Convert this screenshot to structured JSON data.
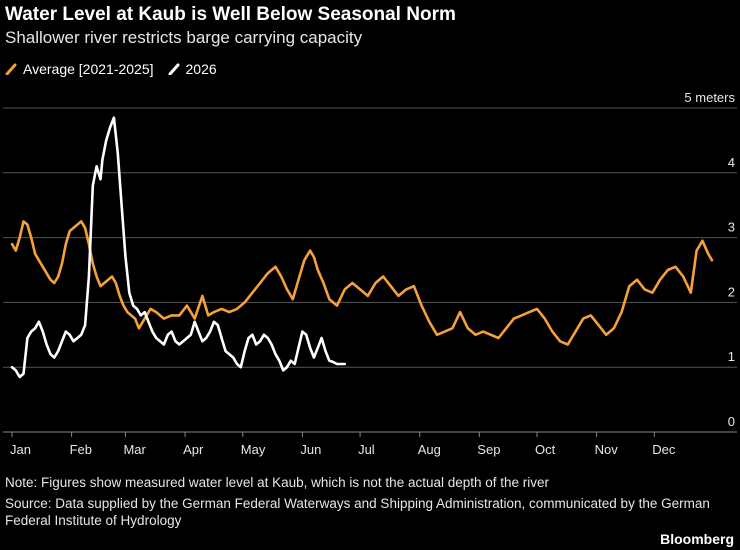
{
  "header": {
    "title": "Water Level at Kaub is Well Below Seasonal Norm",
    "subtitle": "Shallower river restricts barge carrying capacity"
  },
  "footer": {
    "note": "Note: Figures show measured water level at Kaub, which is not the actual depth of the river",
    "source": "Source: Data supplied by the German Federal Waterways and Shipping Administration, communicated by the German Federal Institute of Hydrology",
    "brand": "Bloomberg"
  },
  "colors": {
    "average": "#f5a03a",
    "current": "#ffffff",
    "grid": "#555555",
    "background": "#000000"
  },
  "chart_data": {
    "type": "line",
    "title": "Water Level at Kaub is Well Below Seasonal Norm",
    "subtitle": "Shallower river restricts barge carrying capacity",
    "ylabel": "",
    "y_unit_label": "5 meters",
    "ylim": [
      0,
      5
    ],
    "y_ticks": [
      0,
      1,
      2,
      3,
      4,
      5
    ],
    "y_tick_labels": [
      "0",
      "1",
      "2",
      "3",
      "4",
      "5 meters"
    ],
    "xlim": [
      1,
      365
    ],
    "x_tick_labels": [
      "Jan",
      "Feb",
      "Mar",
      "Apr",
      "May",
      "Jun",
      "Jul",
      "Aug",
      "Sep",
      "Oct",
      "Nov",
      "Dec"
    ],
    "x_tick_days": [
      1,
      32,
      60,
      91,
      121,
      152,
      182,
      213,
      244,
      274,
      305,
      335
    ],
    "grid": true,
    "legend_position": "top-left",
    "series": [
      {
        "name": "Average [2021-2025]",
        "color": "#f5a03a",
        "x": [
          1,
          3,
          5,
          7,
          9,
          11,
          13,
          15,
          17,
          19,
          21,
          23,
          25,
          27,
          29,
          31,
          33,
          35,
          37,
          39,
          41,
          43,
          45,
          47,
          49,
          51,
          53,
          55,
          57,
          59,
          61,
          63,
          65,
          67,
          69,
          71,
          73,
          76,
          80,
          84,
          88,
          92,
          96,
          100,
          103,
          106,
          110,
          114,
          118,
          122,
          126,
          130,
          134,
          138,
          141,
          144,
          147,
          150,
          153,
          156,
          158,
          160,
          163,
          166,
          170,
          174,
          178,
          182,
          186,
          190,
          194,
          198,
          202,
          206,
          210,
          214,
          218,
          222,
          226,
          230,
          234,
          238,
          242,
          246,
          250,
          254,
          258,
          262,
          266,
          270,
          274,
          278,
          282,
          286,
          290,
          294,
          298,
          302,
          306,
          310,
          314,
          318,
          322,
          326,
          330,
          334,
          338,
          342,
          346,
          350,
          354,
          357,
          360,
          363,
          365
        ],
        "values": [
          2.9,
          2.8,
          3.0,
          3.25,
          3.2,
          3.0,
          2.75,
          2.65,
          2.55,
          2.45,
          2.35,
          2.3,
          2.4,
          2.6,
          2.9,
          3.1,
          3.15,
          3.2,
          3.25,
          3.15,
          2.9,
          2.6,
          2.4,
          2.25,
          2.3,
          2.35,
          2.4,
          2.3,
          2.1,
          1.95,
          1.85,
          1.8,
          1.75,
          1.6,
          1.7,
          1.8,
          1.9,
          1.85,
          1.75,
          1.8,
          1.8,
          1.95,
          1.75,
          2.1,
          1.8,
          1.85,
          1.9,
          1.85,
          1.9,
          2.0,
          2.15,
          2.3,
          2.45,
          2.55,
          2.4,
          2.2,
          2.05,
          2.35,
          2.65,
          2.8,
          2.7,
          2.5,
          2.3,
          2.05,
          1.95,
          2.2,
          2.3,
          2.2,
          2.1,
          2.3,
          2.4,
          2.25,
          2.1,
          2.2,
          2.25,
          1.95,
          1.7,
          1.5,
          1.55,
          1.6,
          1.85,
          1.6,
          1.5,
          1.55,
          1.5,
          1.45,
          1.6,
          1.75,
          1.8,
          1.85,
          1.9,
          1.75,
          1.55,
          1.4,
          1.35,
          1.55,
          1.75,
          1.8,
          1.65,
          1.5,
          1.6,
          1.85,
          2.25,
          2.35,
          2.2,
          2.15,
          2.35,
          2.5,
          2.55,
          2.4,
          2.15,
          2.8,
          2.95,
          2.75,
          2.65
        ]
      },
      {
        "name": "2026",
        "color": "#ffffff",
        "x": [
          1,
          3,
          5,
          7,
          9,
          11,
          13,
          15,
          17,
          19,
          21,
          23,
          25,
          27,
          29,
          31,
          33,
          35,
          37,
          39,
          41,
          43,
          45,
          47,
          48,
          50,
          52,
          54,
          56,
          58,
          60,
          62,
          64,
          66,
          68,
          70,
          72,
          74,
          76,
          78,
          80,
          82,
          84,
          86,
          88,
          90,
          92,
          94,
          96,
          98,
          100,
          102,
          104,
          106,
          108,
          110,
          112,
          114,
          116,
          118,
          120,
          122,
          124,
          126,
          128,
          130,
          132,
          134,
          136,
          138,
          140,
          142,
          144,
          146,
          148,
          150,
          152,
          154,
          156,
          158,
          160,
          162,
          164,
          166,
          168,
          170,
          172,
          174
        ],
        "values": [
          1.0,
          0.95,
          0.85,
          0.9,
          1.45,
          1.55,
          1.6,
          1.7,
          1.55,
          1.35,
          1.2,
          1.15,
          1.25,
          1.4,
          1.55,
          1.5,
          1.4,
          1.45,
          1.5,
          1.65,
          2.4,
          3.8,
          4.1,
          3.9,
          4.2,
          4.5,
          4.7,
          4.85,
          4.3,
          3.5,
          2.7,
          2.15,
          1.95,
          1.9,
          1.8,
          1.85,
          1.7,
          1.55,
          1.45,
          1.4,
          1.35,
          1.5,
          1.55,
          1.4,
          1.35,
          1.4,
          1.45,
          1.5,
          1.7,
          1.55,
          1.4,
          1.45,
          1.55,
          1.7,
          1.65,
          1.45,
          1.25,
          1.2,
          1.15,
          1.05,
          1.0,
          1.25,
          1.45,
          1.5,
          1.35,
          1.4,
          1.5,
          1.45,
          1.35,
          1.2,
          1.1,
          0.95,
          1.0,
          1.1,
          1.05,
          1.3,
          1.55,
          1.5,
          1.3,
          1.15,
          1.3,
          1.45,
          1.25,
          1.1,
          1.08,
          1.05,
          1.05,
          1.05
        ]
      }
    ]
  }
}
